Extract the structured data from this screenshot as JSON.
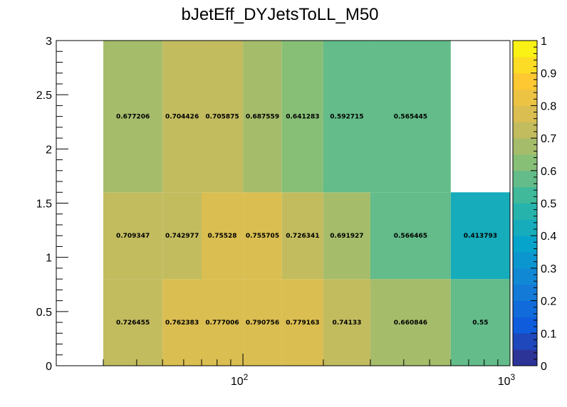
{
  "chart_data": {
    "type": "heatmap",
    "title": "bJetEff_DYJetsToLL_M50",
    "xlabel": "",
    "ylabel": "",
    "x_scale": "log",
    "xlim": [
      20,
      1000
    ],
    "ylim": [
      0,
      3
    ],
    "x_edges": [
      30,
      50,
      70,
      100,
      140,
      200,
      300,
      600,
      1000
    ],
    "y_edges": [
      0,
      0.8,
      1.6,
      3.0
    ],
    "rows": [
      {
        "y_range": [
          0,
          0.8
        ],
        "cells": [
          {
            "x_range": [
              30,
              50
            ],
            "value": 0.726455,
            "label": "0.726455"
          },
          {
            "x_range": [
              50,
              70
            ],
            "value": 0.762383,
            "label": "0.762383"
          },
          {
            "x_range": [
              70,
              100
            ],
            "value": 0.777006,
            "label": "0.777006"
          },
          {
            "x_range": [
              100,
              140
            ],
            "value": 0.790756,
            "label": "0.790756"
          },
          {
            "x_range": [
              140,
              200
            ],
            "value": 0.779163,
            "label": "0.779163"
          },
          {
            "x_range": [
              200,
              300
            ],
            "value": 0.74133,
            "label": "0.74133"
          },
          {
            "x_range": [
              300,
              600
            ],
            "value": 0.660846,
            "label": "0.660846"
          },
          {
            "x_range": [
              600,
              1000
            ],
            "value": 0.55,
            "label": "0.55"
          }
        ]
      },
      {
        "y_range": [
          0.8,
          1.6
        ],
        "cells": [
          {
            "x_range": [
              30,
              50
            ],
            "value": 0.709347,
            "label": "0.709347"
          },
          {
            "x_range": [
              50,
              70
            ],
            "value": 0.742977,
            "label": "0.742977"
          },
          {
            "x_range": [
              70,
              100
            ],
            "value": 0.75528,
            "label": "0.75528"
          },
          {
            "x_range": [
              100,
              140
            ],
            "value": 0.755705,
            "label": "0.755705"
          },
          {
            "x_range": [
              140,
              200
            ],
            "value": 0.726341,
            "label": "0.726341"
          },
          {
            "x_range": [
              200,
              300
            ],
            "value": 0.691927,
            "label": "0.691927"
          },
          {
            "x_range": [
              300,
              600
            ],
            "value": 0.566465,
            "label": "0.566465"
          },
          {
            "x_range": [
              600,
              1000
            ],
            "value": 0.413793,
            "label": "0.413793"
          }
        ]
      },
      {
        "y_range": [
          1.6,
          3.0
        ],
        "cells": [
          {
            "x_range": [
              30,
              50
            ],
            "value": 0.677206,
            "label": "0.677206"
          },
          {
            "x_range": [
              50,
              70
            ],
            "value": 0.704426,
            "label": "0.704426"
          },
          {
            "x_range": [
              70,
              100
            ],
            "value": 0.705875,
            "label": "0.705875"
          },
          {
            "x_range": [
              100,
              140
            ],
            "value": 0.687559,
            "label": "0.687559"
          },
          {
            "x_range": [
              140,
              200
            ],
            "value": 0.641283,
            "label": "0.641283"
          },
          {
            "x_range": [
              200,
              300
            ],
            "value": 0.592715,
            "label": "0.592715"
          },
          {
            "x_range": [
              300,
              600
            ],
            "value": 0.565445,
            "label": "0.565445"
          }
        ]
      }
    ],
    "y_ticks": [
      "0",
      "0.5",
      "1",
      "1.5",
      "2",
      "2.5",
      "3"
    ],
    "y_tick_values": [
      0,
      0.5,
      1,
      1.5,
      2,
      2.5,
      3
    ],
    "x_ticks": [
      {
        "value": 100,
        "base": "10",
        "exp": "2"
      },
      {
        "value": 1000,
        "base": "10",
        "exp": "3"
      }
    ],
    "colorbar": {
      "range": [
        0,
        1
      ],
      "ticks": [
        "0",
        "0.1",
        "0.2",
        "0.3",
        "0.4",
        "0.5",
        "0.6",
        "0.7",
        "0.8",
        "0.9",
        "1"
      ],
      "tick_values": [
        0,
        0.1,
        0.2,
        0.3,
        0.4,
        0.5,
        0.6,
        0.7,
        0.8,
        0.9,
        1
      ]
    },
    "palette": "#352a87,#0f5cdd,#1481d6,#06a4ca,#2eb7a4,#87bf77,#d1bb59,#fec832,#f9fb0e"
  }
}
